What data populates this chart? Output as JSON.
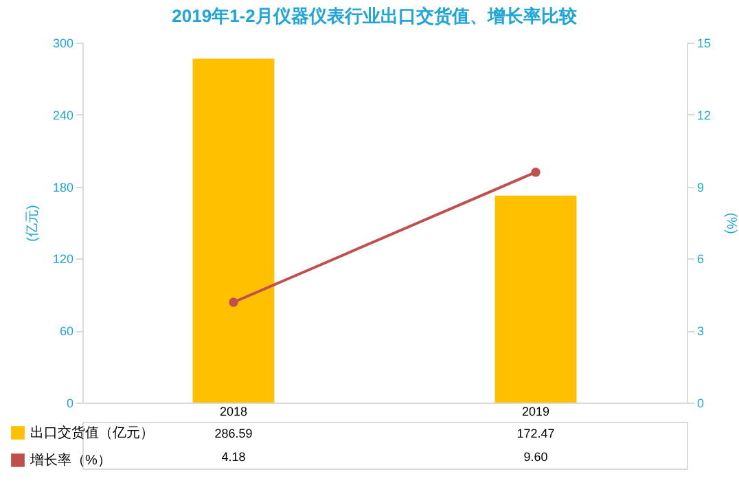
{
  "chart_data": {
    "type": "bar",
    "title": "2019年1-2月仪器仪表行业出口交货值、增长率比较",
    "categories": [
      "2018",
      "2019"
    ],
    "ylabel": "(亿元)",
    "y2label": "(%)",
    "ylim": [
      0,
      300
    ],
    "yticks": [
      0,
      60,
      120,
      180,
      240,
      300
    ],
    "y2lim": [
      0,
      15
    ],
    "y2ticks": [
      0,
      3,
      6,
      9,
      12,
      15
    ],
    "legend": "bottom",
    "marker": "circle",
    "line_style": "solid",
    "series": [
      {
        "name": "出口交货值（亿元）",
        "color": "#ffc000",
        "values": [
          286.59,
          172.47
        ],
        "value_labels": [
          "286.59",
          "172.47"
        ]
      },
      {
        "name": "增长率（%）",
        "type": "line",
        "axis": "y2",
        "color": "#c0504d",
        "values": [
          4.18,
          9.6
        ],
        "value_labels": [
          "4.18",
          "9.60"
        ]
      }
    ]
  }
}
